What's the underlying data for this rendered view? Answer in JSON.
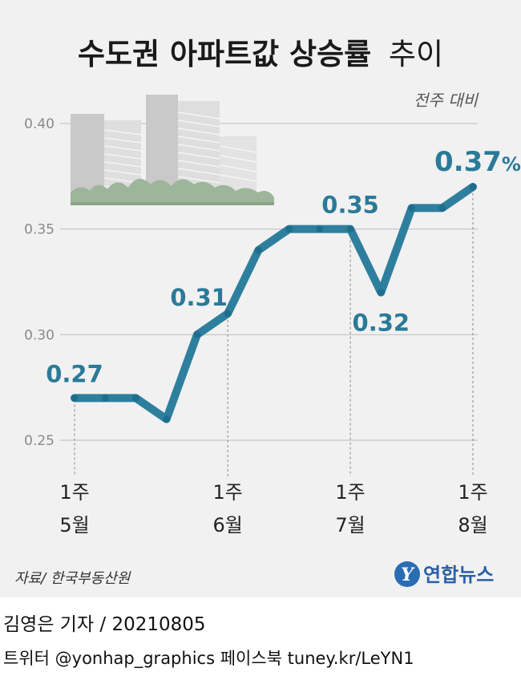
{
  "title_main": "수도권 아파트값 상승률",
  "title_tail": "추이",
  "subtitle": "전주 대비",
  "source": "자료/ 한국부동산원",
  "logo_text": "연합뉴스",
  "logo_mark": "Y",
  "credits": {
    "reporter": "김영은 기자 / 20210805",
    "social": "트위터 @yonhap_graphics  페이스북 tuney.kr/LeYN1"
  },
  "chart_data": {
    "type": "line",
    "title": "수도권 아파트값 상승률 추이",
    "ylabel": "전주 대비",
    "ylim": [
      0.25,
      0.4
    ],
    "yticks": [
      "0.25",
      "0.30",
      "0.35",
      "0.40"
    ],
    "grid": true,
    "x_labels": [
      {
        "index": 0,
        "week": "1주",
        "month": "5월"
      },
      {
        "index": 5,
        "week": "1주",
        "month": "6월"
      },
      {
        "index": 9,
        "week": "1주",
        "month": "7월"
      },
      {
        "index": 13,
        "week": "1주",
        "month": "8월"
      }
    ],
    "series": [
      {
        "values": [
          0.27,
          0.27,
          0.27,
          0.26,
          0.3,
          0.31,
          0.34,
          0.35,
          0.35,
          0.35,
          0.32,
          0.36,
          0.36,
          0.37
        ]
      }
    ],
    "data_labels": [
      {
        "index": 0,
        "text": "0.27",
        "pos": "above"
      },
      {
        "index": 5,
        "text": "0.31",
        "pos": "left"
      },
      {
        "index": 9,
        "text": "0.35",
        "pos": "above"
      },
      {
        "index": 10,
        "text": "0.32",
        "pos": "below"
      },
      {
        "index": 13,
        "text": "0.37%",
        "pos": "above"
      }
    ],
    "line_color": "#2e7f9e",
    "marker_color": "#1f6e8c"
  }
}
